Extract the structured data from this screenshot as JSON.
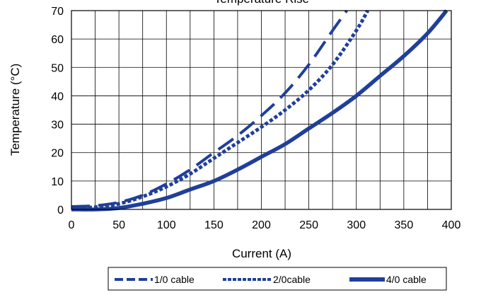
{
  "chart_data": {
    "type": "line",
    "title": "Temperature Rise",
    "xlabel": "Current (A)",
    "ylabel": "Temperature (°C)",
    "xlim": [
      0,
      400
    ],
    "ylim": [
      0,
      70
    ],
    "xticks": [
      0,
      50,
      100,
      150,
      200,
      250,
      300,
      350,
      400
    ],
    "yticks": [
      0,
      10,
      20,
      30,
      40,
      50,
      60,
      70
    ],
    "grid": true,
    "legend_position": "bottom",
    "series": [
      {
        "name": "1/0 cable",
        "style": "dashed",
        "color": "#1f3f99",
        "x": [
          0,
          25,
          50,
          75,
          100,
          125,
          150,
          175,
          200,
          225,
          250,
          275,
          290
        ],
        "y": [
          1,
          1.3,
          2.5,
          5,
          9,
          14,
          20,
          26,
          33,
          41,
          51,
          63,
          70
        ]
      },
      {
        "name": "2/0cable",
        "style": "dotted",
        "color": "#1f3f99",
        "x": [
          0,
          25,
          50,
          75,
          100,
          125,
          150,
          175,
          200,
          225,
          250,
          275,
          300,
          312
        ],
        "y": [
          0.5,
          0.8,
          2,
          4.5,
          8,
          12.5,
          18,
          23.5,
          29,
          35,
          42,
          51,
          63,
          70
        ]
      },
      {
        "name": "4/0 cable",
        "style": "solid",
        "color": "#1f3f99",
        "x": [
          0,
          25,
          50,
          75,
          100,
          125,
          150,
          175,
          200,
          225,
          250,
          275,
          300,
          325,
          350,
          375,
          395
        ],
        "y": [
          0,
          0,
          0.5,
          2,
          4,
          7,
          10,
          14,
          18.5,
          23,
          28.5,
          34,
          40,
          47,
          54,
          62,
          70
        ]
      }
    ]
  }
}
